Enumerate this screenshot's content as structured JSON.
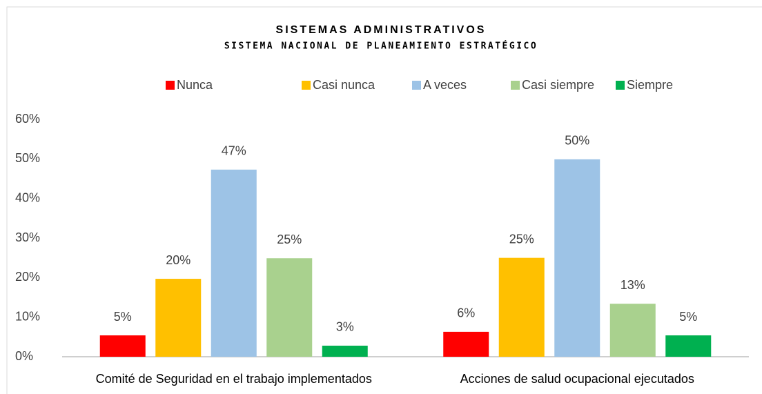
{
  "chart_data": {
    "type": "bar",
    "title": "SISTEMAS ADMINISTRATIVOS",
    "subtitle": "SISTEMA NACIONAL DE PLANEAMIENTO ESTRATÉGICO",
    "categories": [
      "Comité de Seguridad en el trabajo implementados",
      "Acciones de salud ocupacional ejecutados"
    ],
    "series": [
      {
        "name": "Nunca",
        "color": "#ff0000",
        "values": [
          5.4,
          6.3
        ],
        "value_labels": [
          "5%",
          "6%"
        ]
      },
      {
        "name": "Casi nunca",
        "color": "#ffc000",
        "values": [
          19.7,
          25
        ],
        "value_labels": [
          "20%",
          "25%"
        ]
      },
      {
        "name": "A veces",
        "color": "#9dc3e6",
        "values": [
          47.3,
          49.9
        ],
        "value_labels": [
          "47%",
          "50%"
        ]
      },
      {
        "name": "Casi siempre",
        "color": "#a9d18e",
        "values": [
          24.9,
          13.4
        ],
        "value_labels": [
          "25%",
          "13%"
        ]
      },
      {
        "name": "Siempre",
        "color": "#00b050",
        "values": [
          2.8,
          5.4
        ],
        "value_labels": [
          "3%",
          "5%"
        ]
      }
    ],
    "ylim": [
      0,
      60
    ],
    "yticks": [
      {
        "value": 0,
        "label": "0%"
      },
      {
        "value": 10,
        "label": "10%"
      },
      {
        "value": 20,
        "label": "20%"
      },
      {
        "value": 30,
        "label": "30%"
      },
      {
        "value": 40,
        "label": "40%"
      },
      {
        "value": 50,
        "label": "50%"
      },
      {
        "value": 60,
        "label": "60%"
      }
    ],
    "grid": false,
    "legend": "top"
  }
}
